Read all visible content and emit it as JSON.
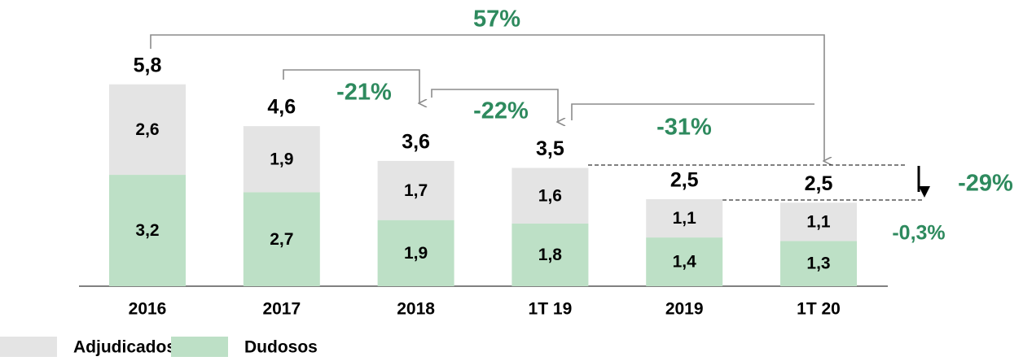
{
  "chart_data": {
    "type": "stacked-bar",
    "categories": [
      "2016",
      "2017",
      "2018",
      "1T 19",
      "2019",
      "1T 20"
    ],
    "series": [
      {
        "name": "Dudosos",
        "color": "#bde0c6",
        "values": [
          3.2,
          2.7,
          1.9,
          1.8,
          1.4,
          1.3
        ],
        "value_labels": [
          "3,2",
          "2,7",
          "1,9",
          "1,8",
          "1,4",
          "1,3"
        ]
      },
      {
        "name": "Adjudicados",
        "color": "#e4e4e4",
        "values": [
          2.6,
          1.9,
          1.7,
          1.6,
          1.1,
          1.1
        ],
        "value_labels": [
          "2,6",
          "1,9",
          "1,7",
          "1,6",
          "1,1",
          "1,1"
        ]
      }
    ],
    "totals": [
      5.8,
      4.6,
      3.6,
      3.5,
      2.5,
      2.5
    ],
    "total_labels": [
      "5,8",
      "4,6",
      "3,6",
      "3,5",
      "2,5",
      "2,5"
    ],
    "annotations": [
      "57%",
      "-21%",
      "-22%",
      "-31%",
      "-29%",
      "-0,3%"
    ],
    "legend_order": [
      1,
      0
    ]
  }
}
